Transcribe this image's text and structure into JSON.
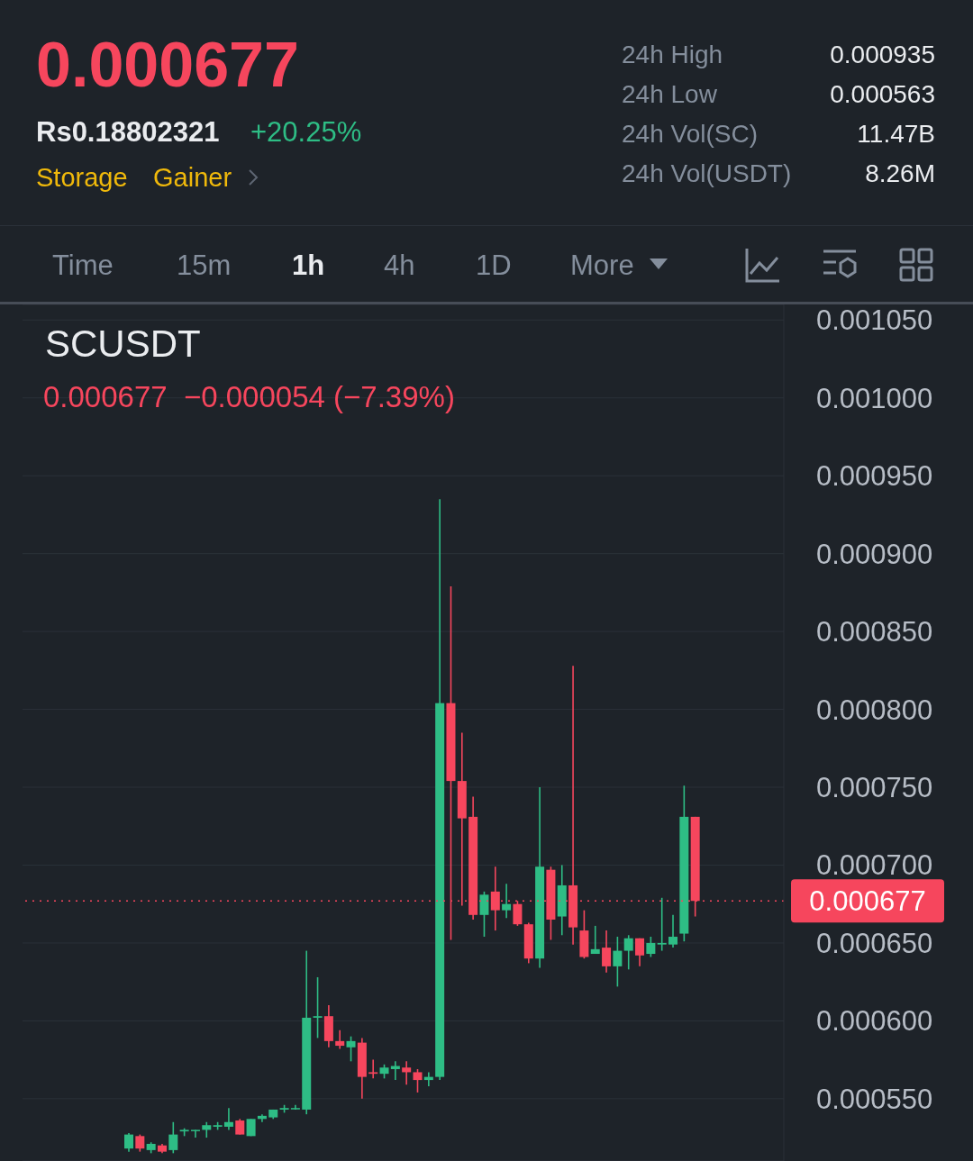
{
  "chart_data": {
    "type": "candlestick",
    "title": "SCUSDT",
    "subtitle": "0.000677  −0.000054 (−7.39%)",
    "annotations": [
      "0.000677",
      "Rs0.18802321",
      "+20.25%",
      "Storage",
      "Gainer",
      "24h High",
      "0.000935",
      "24h Low",
      "0.000563",
      "24h Vol(SC)",
      "11.47B",
      "24h Vol(USDT)",
      "8.26M",
      "Time",
      "15m",
      "1h",
      "4h",
      "1D",
      "More"
    ],
    "categories": [
      null,
      null,
      null,
      null,
      null,
      null,
      null,
      null,
      null,
      null,
      null,
      null,
      null,
      null,
      null,
      null,
      null,
      null,
      null,
      null,
      null,
      null,
      null,
      null,
      null,
      null,
      null,
      null,
      null,
      null,
      null,
      null,
      null,
      null,
      null,
      null,
      null,
      null,
      null,
      null,
      null,
      null,
      null,
      null,
      null,
      null,
      null,
      null,
      null,
      null,
      null,
      null
    ],
    "ohlc": [
      [
        0.000518,
        0.000528,
        0.000516,
        0.000527
      ],
      [
        0.000526,
        0.000527,
        0.000516,
        0.000518
      ],
      [
        0.000517,
        0.000522,
        0.000515,
        0.000521
      ],
      [
        0.00052,
        0.000521,
        0.000515,
        0.000516
      ],
      [
        0.000517,
        0.000535,
        0.000515,
        0.000527
      ],
      [
        0.000529,
        0.000531,
        0.000526,
        0.00053
      ],
      [
        0.00053,
        0.00053,
        0.000525,
        0.00053
      ],
      [
        0.00053,
        0.000535,
        0.000525,
        0.000533
      ],
      [
        0.000532,
        0.000535,
        0.00053,
        0.000533
      ],
      [
        0.000532,
        0.000544,
        0.00053,
        0.000535
      ],
      [
        0.000536,
        0.000537,
        0.000527,
        0.000527
      ],
      [
        0.000526,
        0.000537,
        0.000526,
        0.000537
      ],
      [
        0.000537,
        0.00054,
        0.000535,
        0.000539
      ],
      [
        0.000538,
        0.000543,
        0.000537,
        0.000543
      ],
      [
        0.000543,
        0.000546,
        0.000541,
        0.000544
      ],
      [
        0.000544,
        0.000546,
        0.000543,
        0.000544
      ],
      [
        0.000543,
        0.000645,
        0.00054,
        0.000602
      ],
      [
        0.000602,
        0.000628,
        0.000589,
        0.000603
      ],
      [
        0.000603,
        0.00061,
        0.000583,
        0.000587
      ],
      [
        0.000587,
        0.000594,
        0.000582,
        0.000584
      ],
      [
        0.000583,
        0.00059,
        0.000574,
        0.000587
      ],
      [
        0.000586,
        0.000589,
        0.00055,
        0.000564
      ],
      [
        0.000567,
        0.000575,
        0.000563,
        0.000566
      ],
      [
        0.000566,
        0.000572,
        0.000563,
        0.00057
      ],
      [
        0.000569,
        0.000574,
        0.000562,
        0.000571
      ],
      [
        0.00057,
        0.000574,
        0.000559,
        0.000567
      ],
      [
        0.000567,
        0.000569,
        0.000554,
        0.000562
      ],
      [
        0.000562,
        0.000567,
        0.000558,
        0.000564
      ],
      [
        0.000564,
        0.000935,
        0.000562,
        0.000804
      ],
      [
        0.000804,
        0.000879,
        0.000652,
        0.000754
      ],
      [
        0.000754,
        0.000785,
        0.000674,
        0.00073
      ],
      [
        0.000731,
        0.000744,
        0.000665,
        0.000668
      ],
      [
        0.000668,
        0.000683,
        0.000654,
        0.000681
      ],
      [
        0.000683,
        0.000699,
        0.000658,
        0.000671
      ],
      [
        0.000671,
        0.000688,
        0.000666,
        0.000675
      ],
      [
        0.000675,
        0.000677,
        0.000661,
        0.000662
      ],
      [
        0.000662,
        0.000663,
        0.000637,
        0.00064
      ],
      [
        0.00064,
        0.00075,
        0.000634,
        0.000699
      ],
      [
        0.000697,
        0.000699,
        0.000652,
        0.000665
      ],
      [
        0.000667,
        0.0007,
        0.000655,
        0.000687
      ],
      [
        0.000687,
        0.000828,
        0.000649,
        0.00066
      ],
      [
        0.000658,
        0.000671,
        0.00064,
        0.000641
      ],
      [
        0.000643,
        0.000661,
        0.000643,
        0.000646
      ],
      [
        0.000647,
        0.000658,
        0.000631,
        0.000635
      ],
      [
        0.000635,
        0.000654,
        0.000622,
        0.000645
      ],
      [
        0.000645,
        0.000655,
        0.000633,
        0.000653
      ],
      [
        0.000653,
        0.000653,
        0.000635,
        0.000642
      ],
      [
        0.000643,
        0.000654,
        0.000641,
        0.00065
      ],
      [
        0.000649,
        0.000679,
        0.000645,
        0.00065
      ],
      [
        0.000649,
        0.000668,
        0.000647,
        0.000654
      ],
      [
        0.000656,
        0.000751,
        0.000651,
        0.000731
      ],
      [
        0.000731,
        0.000731,
        0.000667,
        0.000677
      ]
    ],
    "colors": [
      "#2ebd85",
      "#f6465d",
      "#2ebd85",
      "#f6465d",
      "#2ebd85",
      "#2ebd85",
      "#2ebd85",
      "#2ebd85",
      "#2ebd85",
      "#2ebd85",
      "#f6465d",
      "#2ebd85",
      "#2ebd85",
      "#2ebd85",
      "#2ebd85",
      "#2ebd85",
      "#2ebd85",
      "#2ebd85",
      "#f6465d",
      "#f6465d",
      "#2ebd85",
      "#f6465d",
      "#f6465d",
      "#2ebd85",
      "#2ebd85",
      "#f6465d",
      "#f6465d",
      "#2ebd85",
      "#2ebd85",
      "#f6465d",
      "#f6465d",
      "#f6465d",
      "#2ebd85",
      "#f6465d",
      "#2ebd85",
      "#f6465d",
      "#f6465d",
      "#2ebd85",
      "#f6465d",
      "#2ebd85",
      "#f6465d",
      "#f6465d",
      "#2ebd85",
      "#f6465d",
      "#2ebd85",
      "#2ebd85",
      "#f6465d",
      "#2ebd85",
      "#2ebd85",
      "#2ebd85",
      "#2ebd85",
      "#f6465d"
    ],
    "ylim": [
      0.00051,
      0.00106
    ],
    "yticks": [
      {
        "value": 0.00055,
        "label": "0.000550"
      },
      {
        "value": 0.0006,
        "label": "0.000600"
      },
      {
        "value": 0.00065,
        "label": "0.000650"
      },
      {
        "value": 0.0007,
        "label": "0.000700"
      },
      {
        "value": 0.00075,
        "label": "0.000750"
      },
      {
        "value": 0.0008,
        "label": "0.000800"
      },
      {
        "value": 0.00085,
        "label": "0.000850"
      },
      {
        "value": 0.0009,
        "label": "0.000900"
      },
      {
        "value": 0.00095,
        "label": "0.000950"
      },
      {
        "value": 0.001,
        "label": "0.001000"
      },
      {
        "value": 0.00105,
        "label": "0.001050"
      }
    ],
    "grid": "y",
    "tick_labels": "y",
    "ref_lines": [
      {
        "axis": "y",
        "value": 0.000677,
        "label": "0.000677",
        "color": "#f6465d",
        "line_style": "dotted"
      }
    ]
  }
}
